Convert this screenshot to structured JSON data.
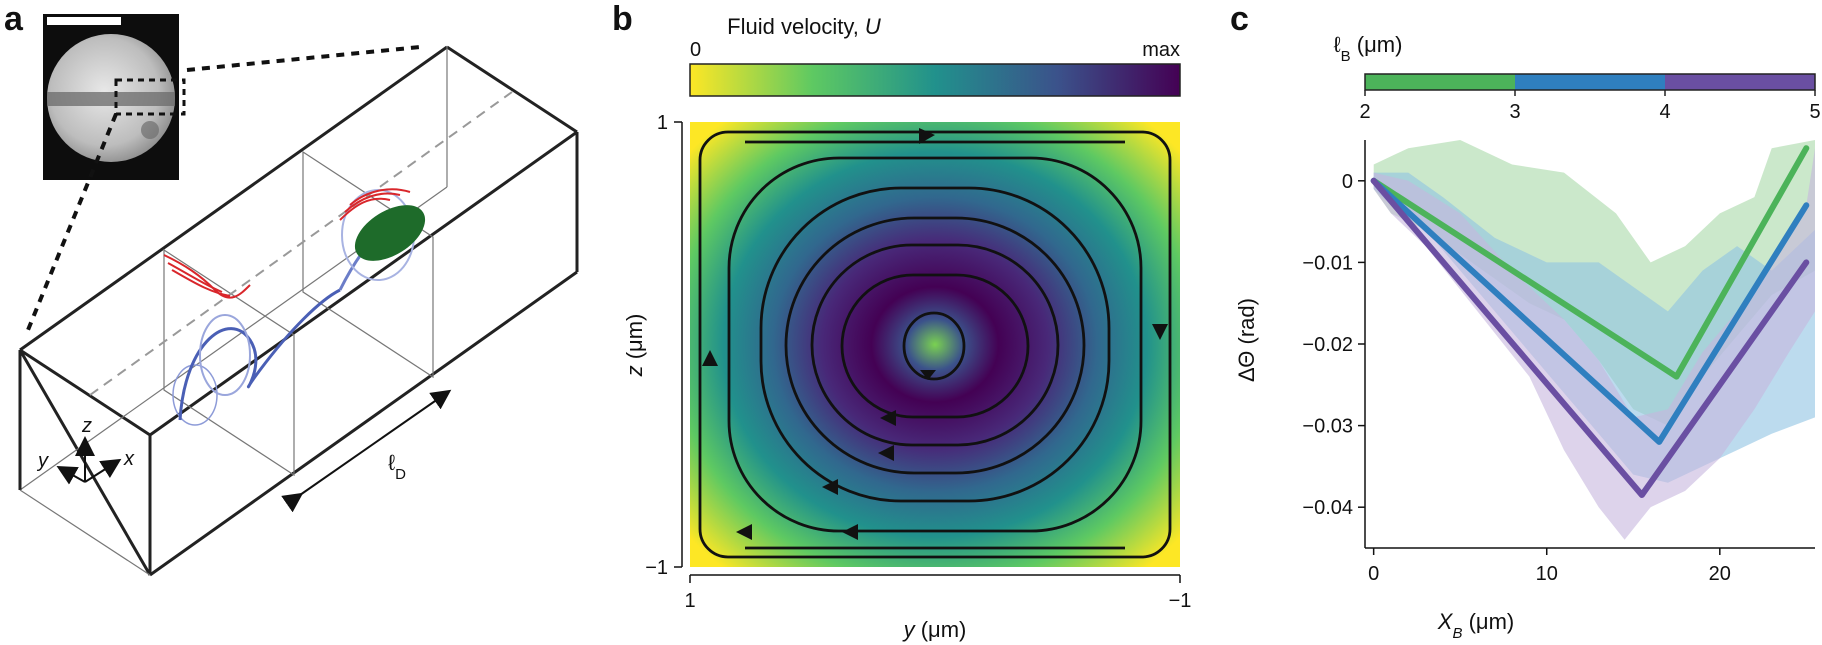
{
  "panels": {
    "a": {
      "label": "a",
      "axis_labels": {
        "z": "z",
        "y": "y",
        "x": "x"
      },
      "length_label": "ℓ",
      "length_sub": "D"
    },
    "b": {
      "label": "b",
      "colorbar_title": "Fluid velocity, ",
      "colorbar_title_sym": "U",
      "colorbar_min": "0",
      "colorbar_max": "max",
      "colormap": [
        "#fde725",
        "#5ec962",
        "#21918c",
        "#3b528b",
        "#440154"
      ]
    },
    "c": {
      "label": "c",
      "colorbar_title_sym": "ℓ",
      "colorbar_title_sub": "B",
      "colorbar_title_unit": " (μm)"
    }
  },
  "chart_data": [
    {
      "type": "heatmap",
      "panel": "b",
      "xlabel_sym": "y",
      "xlabel_unit": " (μm)",
      "ylabel_sym": "z",
      "ylabel_unit": " (μm)",
      "xlim": [
        1,
        -1
      ],
      "ylim": [
        -1,
        1
      ],
      "x_ticks": [
        "1",
        "−1"
      ],
      "y_ticks": [
        "1",
        "−1"
      ],
      "streamlines": "closed loops, counter-clockwise circulation around center"
    },
    {
      "type": "line",
      "panel": "c",
      "xlabel_sym": "X",
      "xlabel_sub": "B",
      "xlabel_unit": " (μm)",
      "ylabel": "ΔΘ (rad)",
      "xlim": [
        -0.5,
        25.5
      ],
      "ylim": [
        -0.045,
        0.005
      ],
      "x_ticks": [
        0,
        10,
        20
      ],
      "y_ticks": [
        0,
        -0.01,
        -0.02,
        -0.03,
        -0.04
      ],
      "y_tick_labels": [
        "0",
        "−0.01",
        "−0.02",
        "−0.03",
        "−0.04"
      ],
      "colorbar": {
        "ticks": [
          "2",
          "3",
          "4",
          "5"
        ],
        "segments": [
          {
            "from": 2,
            "to": 3,
            "color": "#4cb35a"
          },
          {
            "from": 3,
            "to": 4,
            "color": "#2f7fbf"
          },
          {
            "from": 4,
            "to": 5,
            "color": "#6a4fa2"
          }
        ]
      },
      "series": [
        {
          "color": "#4cb35a",
          "band_color": "#a8d9a8",
          "x": [
            0,
            17.5,
            25
          ],
          "y": [
            0,
            -0.024,
            0.004
          ],
          "band_upper": [
            [
              0,
              0.002
            ],
            [
              2,
              0.004
            ],
            [
              5,
              0.005
            ],
            [
              8,
              0.002
            ],
            [
              11,
              0.001
            ],
            [
              14,
              -0.004
            ],
            [
              16,
              -0.01
            ],
            [
              18,
              -0.008
            ],
            [
              20,
              -0.004
            ],
            [
              22,
              -0.002
            ],
            [
              23,
              0.004
            ],
            [
              25.5,
              0.005
            ]
          ],
          "band_lower": [
            [
              25.5,
              -0.011
            ],
            [
              23,
              -0.014
            ],
            [
              21,
              -0.019
            ],
            [
              19,
              -0.024
            ],
            [
              17,
              -0.03
            ],
            [
              15,
              -0.028
            ],
            [
              13,
              -0.022
            ],
            [
              11,
              -0.017
            ],
            [
              9,
              -0.015
            ],
            [
              7,
              -0.012
            ],
            [
              5,
              -0.009
            ],
            [
              3,
              -0.006
            ],
            [
              1,
              -0.004
            ],
            [
              0,
              -0.001
            ]
          ]
        },
        {
          "color": "#2f7fbf",
          "band_color": "#8fc3e3",
          "x": [
            0,
            16.5,
            25
          ],
          "y": [
            0,
            -0.032,
            -0.003
          ],
          "band_upper": [
            [
              0,
              0.001
            ],
            [
              2,
              0.001
            ],
            [
              4,
              -0.002
            ],
            [
              7,
              -0.007
            ],
            [
              10,
              -0.01
            ],
            [
              13,
              -0.01
            ],
            [
              15,
              -0.013
            ],
            [
              17,
              -0.016
            ],
            [
              19,
              -0.011
            ],
            [
              21,
              -0.008
            ],
            [
              23,
              -0.011
            ],
            [
              25.5,
              -0.006
            ]
          ],
          "band_lower": [
            [
              25.5,
              -0.029
            ],
            [
              23,
              -0.031
            ],
            [
              21,
              -0.033
            ],
            [
              19,
              -0.035
            ],
            [
              17,
              -0.037
            ],
            [
              15,
              -0.036
            ],
            [
              13,
              -0.031
            ],
            [
              11,
              -0.026
            ],
            [
              9,
              -0.021
            ],
            [
              7,
              -0.016
            ],
            [
              5,
              -0.011
            ],
            [
              3,
              -0.006
            ],
            [
              1,
              -0.003
            ],
            [
              0,
              -0.001
            ]
          ]
        },
        {
          "color": "#6a4fa2",
          "band_color": "#c7b6de",
          "x": [
            0,
            15.5,
            25
          ],
          "y": [
            0,
            -0.0385,
            -0.01
          ],
          "band_upper": [
            [
              0,
              0.001
            ],
            [
              2,
              0.0
            ],
            [
              5,
              -0.004
            ],
            [
              8,
              -0.011
            ],
            [
              11,
              -0.017
            ],
            [
              13,
              -0.022
            ],
            [
              15,
              -0.029
            ],
            [
              17,
              -0.028
            ],
            [
              19,
              -0.021
            ],
            [
              21,
              -0.016
            ],
            [
              23,
              -0.01
            ],
            [
              25,
              -0.003
            ],
            [
              25.5,
              0.004
            ]
          ],
          "band_lower": [
            [
              25.5,
              -0.016
            ],
            [
              24,
              -0.021
            ],
            [
              22,
              -0.028
            ],
            [
              20,
              -0.034
            ],
            [
              18,
              -0.038
            ],
            [
              16,
              -0.04
            ],
            [
              14.5,
              -0.044
            ],
            [
              13,
              -0.04
            ],
            [
              11,
              -0.033
            ],
            [
              9,
              -0.024
            ],
            [
              6,
              -0.016
            ],
            [
              3,
              -0.008
            ],
            [
              1,
              -0.004
            ],
            [
              0,
              -0.001
            ]
          ]
        }
      ]
    }
  ]
}
